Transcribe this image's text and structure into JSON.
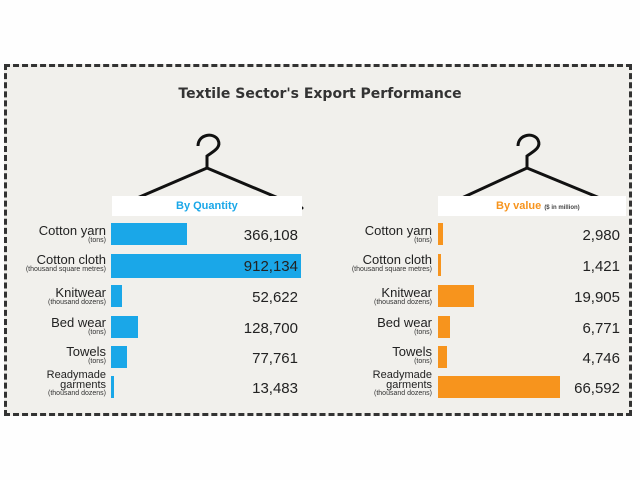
{
  "chart_data": [
    {
      "type": "bar",
      "title": "Textile Sector's Export Performance",
      "subtitle": "By Quantity",
      "categories": [
        "Cotton yarn",
        "Cotton cloth",
        "Knitwear",
        "Bed wear",
        "Towels",
        "Readymade garments"
      ],
      "units": [
        "(tons)",
        "(thousand square metres)",
        "(thousand dozens)",
        "(tons)",
        "(tons)",
        "(thousand dozens)"
      ],
      "values": [
        366108,
        912134,
        52622,
        128700,
        77761,
        13483
      ],
      "value_labels": [
        "366,108",
        "912,134",
        "52,622",
        "128,700",
        "77,761",
        "13,483"
      ],
      "color": "#1aa7e8"
    },
    {
      "type": "bar",
      "subtitle": "By value",
      "subtitle_unit": "($ in million)",
      "categories": [
        "Cotton yarn",
        "Cotton cloth",
        "Knitwear",
        "Bed wear",
        "Towels",
        "Readymade garments"
      ],
      "units": [
        "(tons)",
        "(thousand square metres)",
        "(thousand dozens)",
        "(tons)",
        "(tons)",
        "(thousand dozens)"
      ],
      "values": [
        2980,
        1421,
        19905,
        6771,
        4746,
        66592
      ],
      "value_labels": [
        "2,980",
        "1,421",
        "19,905",
        "6,771",
        "4,746",
        "66,592"
      ],
      "color": "#f7941d"
    }
  ],
  "colors": {
    "quantity": "#1aa7e8",
    "value": "#f7941d"
  },
  "icons": [
    "hanger-icon"
  ]
}
